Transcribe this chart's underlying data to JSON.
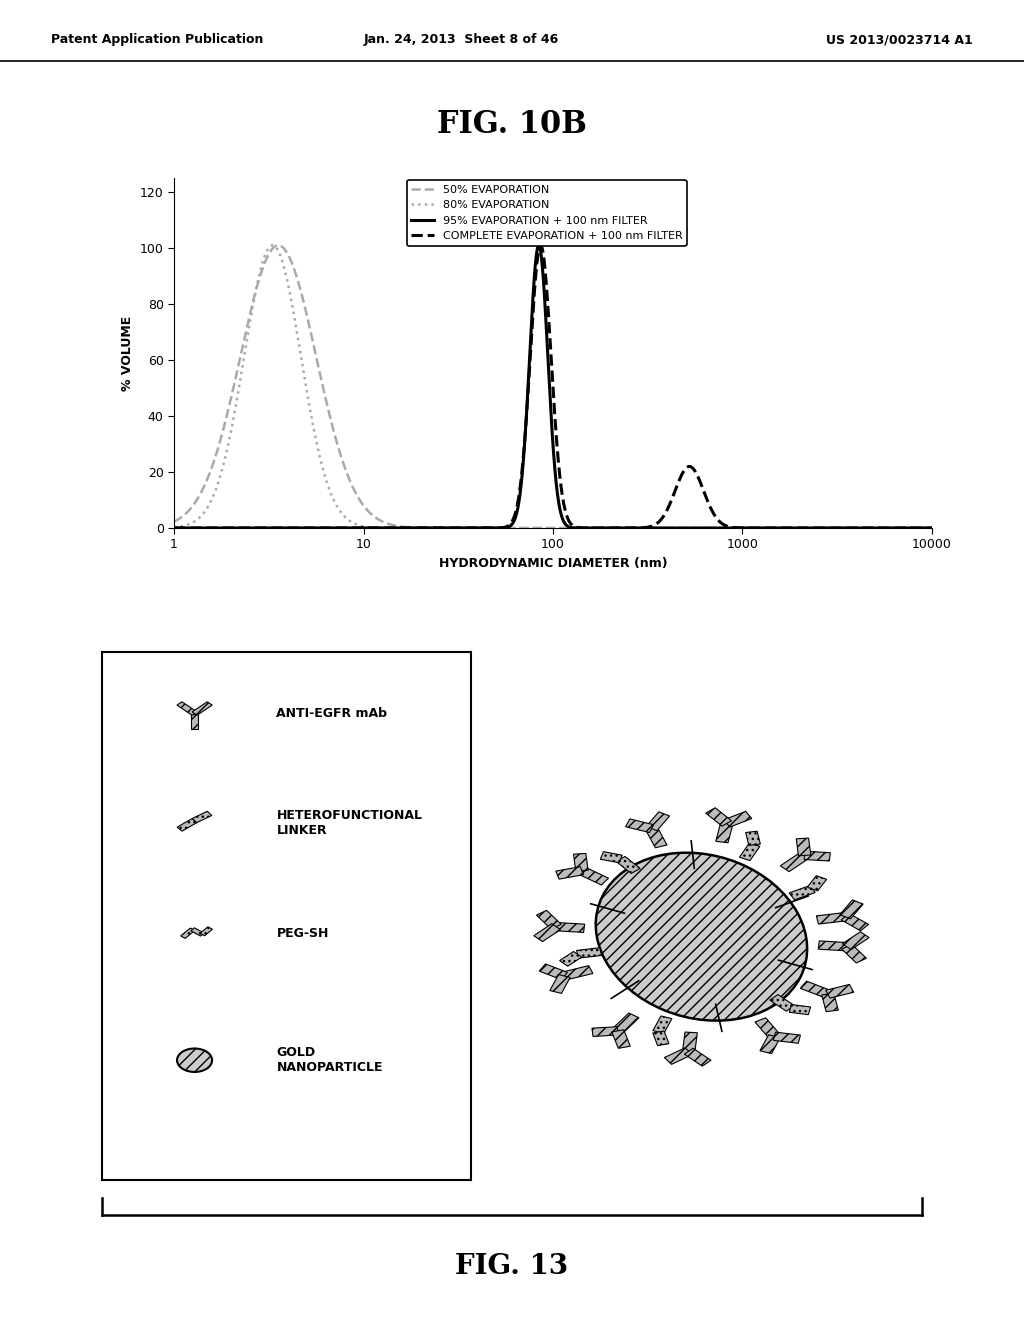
{
  "title_fig10b": "FIG. 10B",
  "title_fig13": "FIG. 13",
  "patent_left": "Patent Application Publication",
  "patent_center": "Jan. 24, 2013  Sheet 8 of 46",
  "patent_right": "US 2013/0023714 A1",
  "xlabel": "HYDRODYNAMIC DIAMETER (nm)",
  "ylabel": "% VOLUME",
  "yticks": [
    0,
    20,
    40,
    60,
    80,
    100,
    120
  ],
  "xtick_labels": [
    "1",
    "10",
    "100",
    "1000",
    "10000"
  ],
  "xtick_vals": [
    0,
    1,
    2,
    3,
    4
  ],
  "legend": [
    {
      "label": "50% EVAPORATION",
      "color": "#aaaaaa",
      "ls": "--",
      "lw": 1.8
    },
    {
      "label": "80% EVAPORATION",
      "color": "#aaaaaa",
      "ls": ":",
      "lw": 1.8
    },
    {
      "label": "95% EVAPORATION + 100 nm FILTER",
      "color": "#000000",
      "ls": "-",
      "lw": 2.2
    },
    {
      "label": "COMPLETE EVAPORATION + 100 nm FILTER",
      "color": "#000000",
      "ls": "--",
      "lw": 2.2
    }
  ],
  "background_color": "#ffffff",
  "legend_items": [
    "ANTI-EGFR mAb",
    "HETEROFUNCTIONAL\nLINKER",
    "PEG-SH",
    "GOLD\nNANOPARTICLE"
  ]
}
